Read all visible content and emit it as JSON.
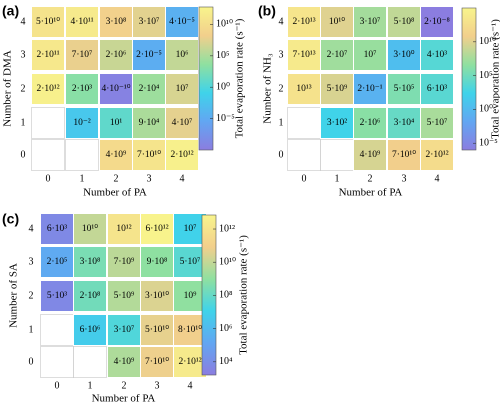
{
  "chart_data": [
    {
      "type": "heatmap",
      "panel_label": "(a)",
      "xlabel": "Number of PA",
      "ylabel": "Number of DMA",
      "colorbar_label": "Total evaporation rate (s⁻¹)",
      "x": [
        0,
        1,
        2,
        3,
        4
      ],
      "y": [
        0,
        1,
        2,
        3,
        4
      ],
      "log_scale": true,
      "colormap": [
        "#8b7de0",
        "#62a6f2",
        "#3fd3ea",
        "#8fe0a0",
        "#f2cf8c",
        "#f8f48c"
      ],
      "clim": [
        1e-10,
        6000000000000.0
      ],
      "cticks": [
        {
          "value": 10000000000.0,
          "label": "10¹⁰"
        },
        {
          "value": 100000.0,
          "label": "10⁵"
        },
        {
          "value": 1,
          "label": "10⁰"
        },
        {
          "value": 1e-05,
          "label": "10⁻⁵"
        }
      ],
      "values": [
        [
          null,
          null,
          4000000000.0,
          70000000000.0,
          2000000000000.0
        ],
        [
          null,
          0.01,
          10.0,
          90000.0,
          40000000.0
        ],
        [
          2000000000000.0,
          2000.0,
          4e-10,
          20000.0,
          10000000.0
        ],
        [
          200000000000.0,
          70000000.0,
          2000000.0,
          2e-05,
          1000000.0
        ],
        [
          50000000000.0,
          400000000000.0,
          300000000.0,
          30000000.0,
          4e-05
        ]
      ],
      "value_labels": [
        [
          null,
          null,
          "4·10⁹",
          "7·10¹⁰",
          "2·10¹²"
        ],
        [
          null,
          "10⁻²",
          "10¹",
          "9·10⁴",
          "4·10⁷"
        ],
        [
          "2·10¹²",
          "2·10³",
          "4·10⁻¹⁰",
          "2·10⁴",
          "10⁷"
        ],
        [
          "2·10¹¹",
          "7·10⁷",
          "2·10⁶",
          "2·10⁻⁵",
          "10⁶"
        ],
        [
          "5·10¹⁰",
          "4·10¹¹",
          "3·10⁸",
          "3·10⁷",
          "4·10⁻⁵"
        ]
      ]
    },
    {
      "type": "heatmap",
      "panel_label": "(b)",
      "xlabel": "Number of PA",
      "ylabel": "Number of NH₃",
      "colorbar_label": "Total evaporation rate (s⁻¹)",
      "x": [
        0,
        1,
        2,
        3,
        4
      ],
      "y": [
        0,
        1,
        2,
        3,
        4
      ],
      "log_scale": true,
      "colormap": [
        "#8b7de0",
        "#62a6f2",
        "#3fd3ea",
        "#8fe0a0",
        "#f2cf8c",
        "#f8f48c"
      ],
      "clim": [
        1e-06,
        1000000000000000.0
      ],
      "cticks": [
        {
          "value": 10000000000.0,
          "label": "10¹⁰"
        },
        {
          "value": 100000.0,
          "label": "10⁵"
        },
        {
          "value": 1,
          "label": "10⁰"
        },
        {
          "value": 1e-05,
          "label": "10⁻⁵"
        }
      ],
      "values": [
        [
          null,
          null,
          4000000000.0,
          70000000000.0,
          2000000000000.0
        ],
        [
          null,
          300.0,
          2000000.0,
          30000.0,
          50000000.0
        ],
        [
          10000000000000.0,
          5000000000.0,
          0.2,
          500000.0,
          6000.0
        ],
        [
          70000000000000.0,
          20000000.0,
          10000000.0,
          3,
          4000.0
        ],
        [
          20000000000000.0,
          10000000000.0,
          30000000.0,
          500000000.0,
          2e-08
        ]
      ],
      "value_labels": [
        [
          null,
          null,
          "4·10⁹",
          "7·10¹⁰",
          "2·10¹²"
        ],
        [
          null,
          "3·10²",
          "2·10⁶",
          "3·10⁴",
          "5·10⁷"
        ],
        [
          "10¹³",
          "5·10⁹",
          "2·10⁻¹",
          "5·10⁵",
          "6·10³"
        ],
        [
          "7·10¹³",
          "2·10⁷",
          "10⁷",
          "3·10⁰",
          "4·10³"
        ],
        [
          "2·10¹³",
          "10¹⁰",
          "3·10⁷",
          "5·10⁸",
          "2·10⁻⁸"
        ]
      ]
    },
    {
      "type": "heatmap",
      "panel_label": "(c)",
      "xlabel": "Number of PA",
      "ylabel": "Number of SA",
      "colorbar_label": "Total evaporation rate (s⁻¹)",
      "x": [
        0,
        1,
        2,
        3,
        4
      ],
      "y": [
        0,
        1,
        2,
        3,
        4
      ],
      "log_scale": true,
      "colormap": [
        "#8b7de0",
        "#62a6f2",
        "#3fd3ea",
        "#8fe0a0",
        "#f2cf8c",
        "#f8f48c"
      ],
      "clim": [
        1600,
        7000000000000.0
      ],
      "cticks": [
        {
          "value": 1000000000000.0,
          "label": "10¹²"
        },
        {
          "value": 10000000000.0,
          "label": "10¹⁰"
        },
        {
          "value": 100000000.0,
          "label": "10⁸"
        },
        {
          "value": 1000000.0,
          "label": "10⁶"
        },
        {
          "value": 10000.0,
          "label": "10⁴"
        }
      ],
      "values": [
        [
          null,
          null,
          4000000000.0,
          70000000000.0,
          2000000000000.0
        ],
        [
          null,
          6000000.0,
          30000000.0,
          50000000000.0,
          80000000000.0
        ],
        [
          5000.0,
          200000000.0,
          5000000000.0,
          30000000000.0,
          1000000000.0
        ],
        [
          200000.0,
          300000000.0,
          7000000000.0,
          900000000.0,
          50000000.0
        ],
        [
          6000.0,
          10000000000.0,
          1000000000000.0,
          6000000000000.0,
          10000000.0
        ]
      ],
      "value_labels": [
        [
          null,
          null,
          "4·10⁹",
          "7·10¹⁰",
          "2·10¹²"
        ],
        [
          null,
          "6·10⁶",
          "3·10⁷",
          "5·10¹⁰",
          "8·10¹⁰"
        ],
        [
          "5·10³",
          "2·10⁸",
          "5·10⁹",
          "3·10¹⁰",
          "10⁹"
        ],
        [
          "2·10⁵",
          "3·10⁸",
          "7·10⁹",
          "9·10⁸",
          "5·10⁷"
        ],
        [
          "6·10³",
          "10¹⁰",
          "10¹²",
          "6·10¹²",
          "10⁷"
        ]
      ]
    }
  ]
}
